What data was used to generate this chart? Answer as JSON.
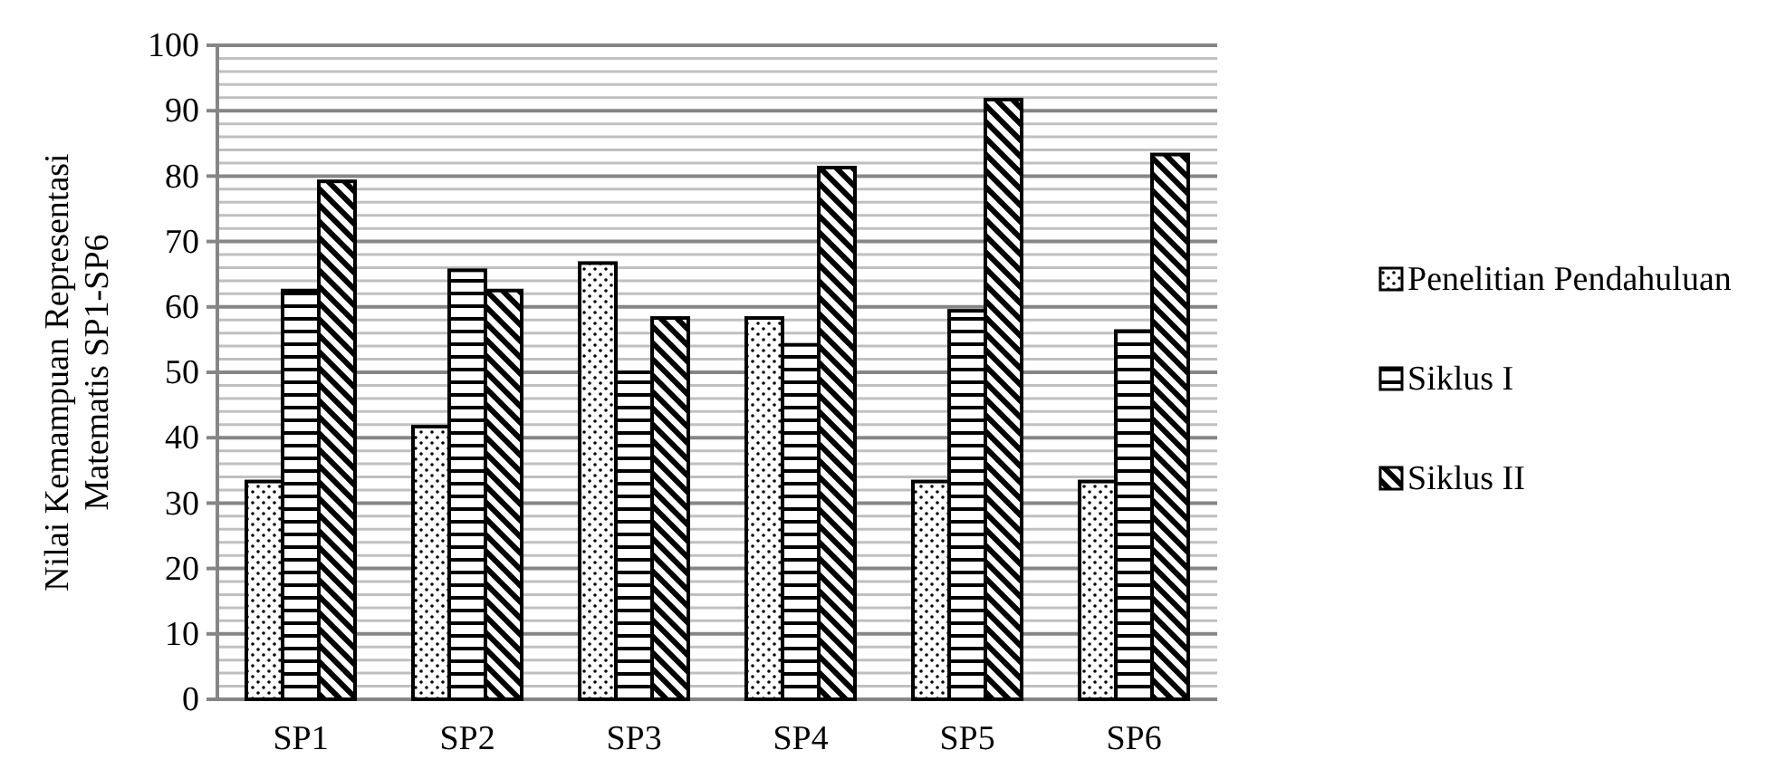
{
  "chart_data": {
    "type": "bar",
    "ylabel": "Nilai Kemampuan Representasi Matematis SP1-SP6",
    "categories": [
      "SP1",
      "SP2",
      "SP3",
      "SP4",
      "SP5",
      "SP6"
    ],
    "series": [
      {
        "name": "Penelitian Pendahuluan",
        "color": "#000000",
        "values": [
          33.3,
          41.7,
          66.7,
          58.3,
          33.3,
          33.3
        ]
      },
      {
        "name": "Siklus I",
        "color": "#000000",
        "values": [
          62.5,
          65.6,
          50,
          54.2,
          59.4,
          56.3
        ]
      },
      {
        "name": "Siklus II",
        "color": "#000000",
        "values": [
          79.2,
          62.5,
          58.3,
          81.3,
          91.7,
          83.3
        ]
      }
    ],
    "ylim": [
      0,
      100
    ],
    "yticks": [
      0,
      {
        "value": 2,
        "label": null
      },
      {
        "value": 4,
        "label": null
      },
      {
        "value": 6,
        "label": null
      },
      {
        "value": 8,
        "label": null
      },
      10,
      {
        "value": 12,
        "label": null
      },
      {
        "value": 14,
        "label": null
      },
      {
        "value": 16,
        "label": null
      },
      {
        "value": 18,
        "label": null
      },
      20,
      {
        "value": 22,
        "label": null
      },
      {
        "value": 24,
        "label": null
      },
      {
        "value": 26,
        "label": null
      },
      {
        "value": 28,
        "label": null
      },
      30,
      {
        "value": 32,
        "label": null
      },
      {
        "value": 34,
        "label": null
      },
      {
        "value": 36,
        "label": null
      },
      {
        "value": 38,
        "label": null
      },
      40,
      {
        "value": 42,
        "label": null
      },
      {
        "value": 44,
        "label": null
      },
      {
        "value": 46,
        "label": null
      },
      {
        "value": 48,
        "label": null
      },
      50,
      {
        "value": 52,
        "label": null
      },
      {
        "value": 54,
        "label": null
      },
      {
        "value": 56,
        "label": null
      },
      {
        "value": 58,
        "label": null
      },
      60,
      {
        "value": 62,
        "label": null
      },
      {
        "value": 64,
        "label": null
      },
      {
        "value": 66,
        "label": null
      },
      {
        "value": 68,
        "label": null
      },
      70,
      {
        "value": 72,
        "label": null
      },
      {
        "value": 74,
        "label": null
      },
      {
        "value": 76,
        "label": null
      },
      {
        "value": 78,
        "label": null
      },
      80,
      {
        "value": 82,
        "label": null
      },
      {
        "value": 84,
        "label": null
      },
      {
        "value": 86,
        "label": null
      },
      {
        "value": 88,
        "label": null
      },
      90,
      {
        "value": 92,
        "label": null
      },
      {
        "value": 94,
        "label": null
      },
      {
        "value": 96,
        "label": null
      },
      {
        "value": 98,
        "label": null
      },
      100
    ],
    "grid": true,
    "legend": "right"
  }
}
